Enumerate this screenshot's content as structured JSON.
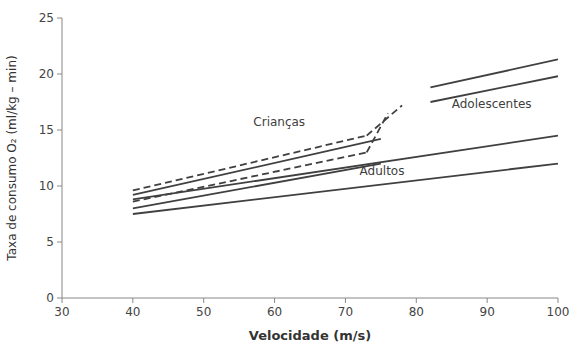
{
  "chart_data": {
    "type": "line",
    "title": "",
    "xlabel": "Velocidade (m/s)",
    "ylabel": "Taxa de consumo O₂ (ml/kg – min)",
    "xlim": [
      30,
      100
    ],
    "ylim": [
      0,
      25
    ],
    "xticks": [
      30,
      40,
      50,
      60,
      70,
      80,
      90,
      100
    ],
    "yticks": [
      0,
      5,
      10,
      15,
      20,
      25
    ],
    "grid": false,
    "color": "#404040",
    "series": [
      {
        "x": [
          40,
          75
        ],
        "values": [
          9.2,
          14.2
        ],
        "line_style": "solid"
      },
      {
        "x": [
          40,
          75
        ],
        "values": [
          8.0,
          12.0
        ],
        "line_style": "solid"
      },
      {
        "x": [
          40,
          73
        ],
        "values": [
          9.6,
          14.5
        ],
        "line_style": "dashed"
      },
      {
        "x": [
          40,
          73
        ],
        "values": [
          8.6,
          13.0
        ],
        "line_style": "dashed"
      },
      {
        "x": [
          73,
          78
        ],
        "values": [
          14.5,
          17.2
        ],
        "line_style": "dashed"
      },
      {
        "x": [
          73,
          76
        ],
        "values": [
          13.0,
          16.5
        ],
        "line_style": "dashed"
      },
      {
        "x": [
          82,
          100
        ],
        "values": [
          18.8,
          21.3
        ],
        "line_style": "solid"
      },
      {
        "x": [
          82,
          100
        ],
        "values": [
          17.5,
          19.8
        ],
        "line_style": "solid"
      },
      {
        "x": [
          40,
          100
        ],
        "values": [
          8.8,
          14.5
        ],
        "line_style": "solid"
      },
      {
        "x": [
          40,
          100
        ],
        "values": [
          7.5,
          12.0
        ],
        "line_style": "solid"
      }
    ],
    "annotations": [
      {
        "text": "Crianças",
        "x": 57,
        "y": 15.2
      },
      {
        "text": "Adolescentes",
        "x": 85,
        "y": 16.8
      },
      {
        "text": "Adultos",
        "x": 72,
        "y": 10.8
      }
    ]
  }
}
